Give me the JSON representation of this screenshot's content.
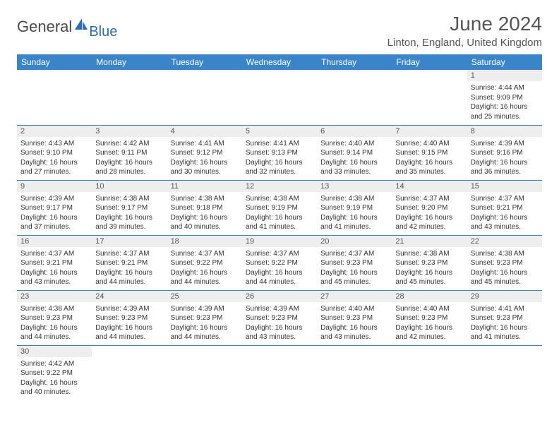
{
  "logo": {
    "general": "General",
    "blue": "Blue",
    "sail_color": "#2a6fb5"
  },
  "header": {
    "month_title": "June 2024",
    "location": "Linton, England, United Kingdom"
  },
  "colors": {
    "header_bg": "#3a85c9",
    "header_text": "#ffffff",
    "daynum_bg": "#eeeeee",
    "row_divider": "#3a85c9",
    "body_text": "#333333"
  },
  "fonts": {
    "title_size_pt": 21,
    "location_size_pt": 11,
    "weekday_size_pt": 9,
    "daynum_size_pt": 8,
    "cell_size_pt": 7.5
  },
  "weekdays": [
    "Sunday",
    "Monday",
    "Tuesday",
    "Wednesday",
    "Thursday",
    "Friday",
    "Saturday"
  ],
  "weeks": [
    [
      null,
      null,
      null,
      null,
      null,
      null,
      {
        "n": "1",
        "sr": "4:44 AM",
        "ss": "9:09 PM",
        "dl": "16 hours and 25 minutes."
      }
    ],
    [
      {
        "n": "2",
        "sr": "4:43 AM",
        "ss": "9:10 PM",
        "dl": "16 hours and 27 minutes."
      },
      {
        "n": "3",
        "sr": "4:42 AM",
        "ss": "9:11 PM",
        "dl": "16 hours and 28 minutes."
      },
      {
        "n": "4",
        "sr": "4:41 AM",
        "ss": "9:12 PM",
        "dl": "16 hours and 30 minutes."
      },
      {
        "n": "5",
        "sr": "4:41 AM",
        "ss": "9:13 PM",
        "dl": "16 hours and 32 minutes."
      },
      {
        "n": "6",
        "sr": "4:40 AM",
        "ss": "9:14 PM",
        "dl": "16 hours and 33 minutes."
      },
      {
        "n": "7",
        "sr": "4:40 AM",
        "ss": "9:15 PM",
        "dl": "16 hours and 35 minutes."
      },
      {
        "n": "8",
        "sr": "4:39 AM",
        "ss": "9:16 PM",
        "dl": "16 hours and 36 minutes."
      }
    ],
    [
      {
        "n": "9",
        "sr": "4:39 AM",
        "ss": "9:17 PM",
        "dl": "16 hours and 37 minutes."
      },
      {
        "n": "10",
        "sr": "4:38 AM",
        "ss": "9:17 PM",
        "dl": "16 hours and 39 minutes."
      },
      {
        "n": "11",
        "sr": "4:38 AM",
        "ss": "9:18 PM",
        "dl": "16 hours and 40 minutes."
      },
      {
        "n": "12",
        "sr": "4:38 AM",
        "ss": "9:19 PM",
        "dl": "16 hours and 41 minutes."
      },
      {
        "n": "13",
        "sr": "4:38 AM",
        "ss": "9:19 PM",
        "dl": "16 hours and 41 minutes."
      },
      {
        "n": "14",
        "sr": "4:37 AM",
        "ss": "9:20 PM",
        "dl": "16 hours and 42 minutes."
      },
      {
        "n": "15",
        "sr": "4:37 AM",
        "ss": "9:21 PM",
        "dl": "16 hours and 43 minutes."
      }
    ],
    [
      {
        "n": "16",
        "sr": "4:37 AM",
        "ss": "9:21 PM",
        "dl": "16 hours and 43 minutes."
      },
      {
        "n": "17",
        "sr": "4:37 AM",
        "ss": "9:21 PM",
        "dl": "16 hours and 44 minutes."
      },
      {
        "n": "18",
        "sr": "4:37 AM",
        "ss": "9:22 PM",
        "dl": "16 hours and 44 minutes."
      },
      {
        "n": "19",
        "sr": "4:37 AM",
        "ss": "9:22 PM",
        "dl": "16 hours and 44 minutes."
      },
      {
        "n": "20",
        "sr": "4:37 AM",
        "ss": "9:23 PM",
        "dl": "16 hours and 45 minutes."
      },
      {
        "n": "21",
        "sr": "4:38 AM",
        "ss": "9:23 PM",
        "dl": "16 hours and 45 minutes."
      },
      {
        "n": "22",
        "sr": "4:38 AM",
        "ss": "9:23 PM",
        "dl": "16 hours and 45 minutes."
      }
    ],
    [
      {
        "n": "23",
        "sr": "4:38 AM",
        "ss": "9:23 PM",
        "dl": "16 hours and 44 minutes."
      },
      {
        "n": "24",
        "sr": "4:39 AM",
        "ss": "9:23 PM",
        "dl": "16 hours and 44 minutes."
      },
      {
        "n": "25",
        "sr": "4:39 AM",
        "ss": "9:23 PM",
        "dl": "16 hours and 44 minutes."
      },
      {
        "n": "26",
        "sr": "4:39 AM",
        "ss": "9:23 PM",
        "dl": "16 hours and 43 minutes."
      },
      {
        "n": "27",
        "sr": "4:40 AM",
        "ss": "9:23 PM",
        "dl": "16 hours and 43 minutes."
      },
      {
        "n": "28",
        "sr": "4:40 AM",
        "ss": "9:23 PM",
        "dl": "16 hours and 42 minutes."
      },
      {
        "n": "29",
        "sr": "4:41 AM",
        "ss": "9:23 PM",
        "dl": "16 hours and 41 minutes."
      }
    ],
    [
      {
        "n": "30",
        "sr": "4:42 AM",
        "ss": "9:22 PM",
        "dl": "16 hours and 40 minutes."
      },
      null,
      null,
      null,
      null,
      null,
      null
    ]
  ],
  "labels": {
    "sunrise": "Sunrise:",
    "sunset": "Sunset:",
    "daylight": "Daylight:"
  }
}
